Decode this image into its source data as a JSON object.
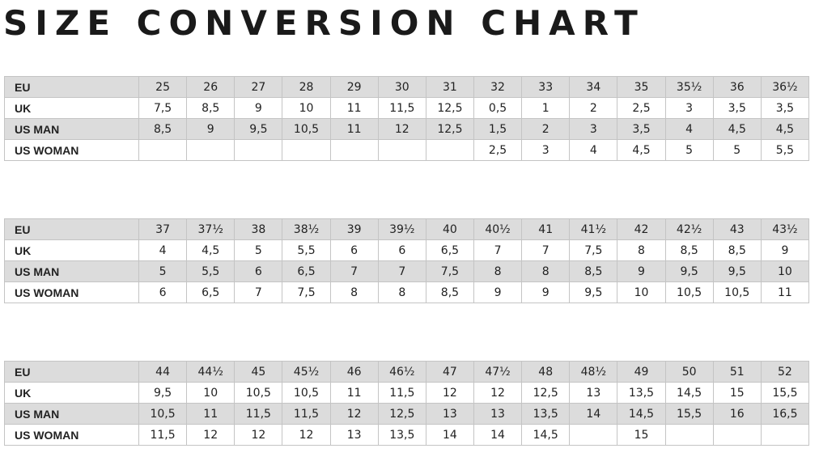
{
  "title": "SIZE CONVERSION CHART",
  "tables": [
    {
      "rows": [
        {
          "label": "EU",
          "cells": [
            "25",
            "26",
            "27",
            "28",
            "29",
            "30",
            "31",
            "32",
            "33",
            "34",
            "35",
            "35½",
            "36",
            "36½"
          ]
        },
        {
          "label": "UK",
          "cells": [
            "7,5",
            "8,5",
            "9",
            "10",
            "11",
            "11,5",
            "12,5",
            "0,5",
            "1",
            "2",
            "2,5",
            "3",
            "3,5",
            "3,5"
          ]
        },
        {
          "label": "US MAN",
          "cells": [
            "8,5",
            "9",
            "9,5",
            "10,5",
            "11",
            "12",
            "12,5",
            "1,5",
            "2",
            "3",
            "3,5",
            "4",
            "4,5",
            "4,5"
          ]
        },
        {
          "label": "US WOMAN",
          "cells": [
            null,
            null,
            null,
            null,
            null,
            null,
            null,
            "2,5",
            "3",
            "4",
            "4,5",
            "5",
            "5",
            "5,5"
          ]
        }
      ]
    },
    {
      "rows": [
        {
          "label": "EU",
          "cells": [
            "37",
            "37½",
            "38",
            "38½",
            "39",
            "39½",
            "40",
            "40½",
            "41",
            "41½",
            "42",
            "42½",
            "43",
            "43½"
          ]
        },
        {
          "label": "UK",
          "cells": [
            "4",
            "4,5",
            "5",
            "5,5",
            "6",
            "6",
            "6,5",
            "7",
            "7",
            "7,5",
            "8",
            "8,5",
            "8,5",
            "9"
          ]
        },
        {
          "label": "US MAN",
          "cells": [
            "5",
            "5,5",
            "6",
            "6,5",
            "7",
            "7",
            "7,5",
            "8",
            "8",
            "8,5",
            "9",
            "9,5",
            "9,5",
            "10"
          ]
        },
        {
          "label": "US WOMAN",
          "cells": [
            "6",
            "6,5",
            "7",
            "7,5",
            "8",
            "8",
            "8,5",
            "9",
            "9",
            "9,5",
            "10",
            "10,5",
            "10,5",
            "11"
          ]
        }
      ]
    },
    {
      "rows": [
        {
          "label": "EU",
          "cells": [
            "44",
            "44½",
            "45",
            "45½",
            "46",
            "46½",
            "47",
            "47½",
            "48",
            "48½",
            "49",
            "50",
            "51",
            "52"
          ]
        },
        {
          "label": "UK",
          "cells": [
            "9,5",
            "10",
            "10,5",
            "10,5",
            "11",
            "11,5",
            "12",
            "12",
            "12,5",
            "13",
            "13,5",
            "14,5",
            "15",
            "15,5"
          ]
        },
        {
          "label": "US MAN",
          "cells": [
            "10,5",
            "11",
            "11,5",
            "11,5",
            "12",
            "12,5",
            "13",
            "13",
            "13,5",
            "14",
            "14,5",
            "15,5",
            "16",
            "16,5"
          ]
        },
        {
          "label": "US WOMAN",
          "cells": [
            "11,5",
            "12",
            "12",
            "12",
            "13",
            "13,5",
            "14",
            "14",
            "14,5",
            null,
            "15",
            null,
            null,
            null
          ]
        }
      ]
    }
  ]
}
